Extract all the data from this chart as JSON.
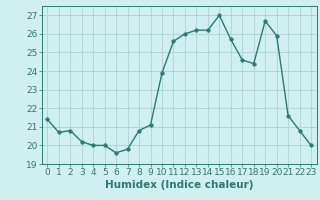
{
  "x": [
    0,
    1,
    2,
    3,
    4,
    5,
    6,
    7,
    8,
    9,
    10,
    11,
    12,
    13,
    14,
    15,
    16,
    17,
    18,
    19,
    20,
    21,
    22,
    23
  ],
  "y": [
    21.4,
    20.7,
    20.8,
    20.2,
    20.0,
    20.0,
    19.6,
    19.8,
    20.8,
    21.1,
    23.9,
    25.6,
    26.0,
    26.2,
    26.2,
    27.0,
    25.7,
    24.6,
    24.4,
    26.7,
    25.9,
    21.6,
    20.8,
    20.0
  ],
  "line_color": "#2d7a6e",
  "marker": "o",
  "markersize": 2.5,
  "linewidth": 1.0,
  "xlabel": "Humidex (Indice chaleur)",
  "ylim": [
    19,
    27.5
  ],
  "xlim": [
    -0.5,
    23.5
  ],
  "yticks": [
    19,
    20,
    21,
    22,
    23,
    24,
    25,
    26,
    27
  ],
  "xticks": [
    0,
    1,
    2,
    3,
    4,
    5,
    6,
    7,
    8,
    9,
    10,
    11,
    12,
    13,
    14,
    15,
    16,
    17,
    18,
    19,
    20,
    21,
    22,
    23
  ],
  "bg_color": "#cff0ee",
  "grid_color": "#b0d8d4",
  "tick_color": "#2d7a6e",
  "label_color": "#2d7a6e",
  "xlabel_fontsize": 7.5,
  "tick_fontsize": 6.5
}
